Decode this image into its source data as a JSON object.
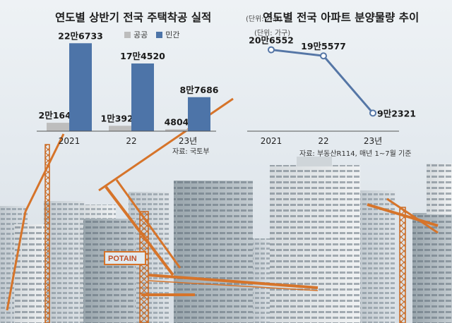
{
  "colors": {
    "public": "#bdbdbd",
    "private": "#4d74a8",
    "line": "#5576a6"
  },
  "chart_data": [
    {
      "type": "bar",
      "title": "연도별 상반기 전국 주택착공 실적",
      "unit": "(단위: 가구)",
      "categories": [
        "2021",
        "22",
        "23년"
      ],
      "series": [
        {
          "name": "공공",
          "values": [
            21647,
            13929,
            4804
          ],
          "labels": [
            "2만1647",
            "1만3929",
            "4804"
          ]
        },
        {
          "name": "민간",
          "values": [
            226733,
            174520,
            87686
          ],
          "labels": [
            "22만6733",
            "17만4520",
            "8만7686"
          ]
        }
      ],
      "ylim": [
        0,
        240000
      ],
      "legend": "top",
      "grid": false,
      "source": "자료: 국토부"
    },
    {
      "type": "line",
      "title": "연도별 전국 아파트 분양물량 추이",
      "unit": "(단위: 가구)",
      "categories": [
        "2021",
        "22",
        "23년"
      ],
      "values": [
        206552,
        195577,
        92321
      ],
      "labels": [
        "20만6552",
        "19만5577",
        "9만2321"
      ],
      "ylim": [
        80000,
        220000
      ],
      "grid": false,
      "source": "자료: 부동산R114, 매년 1~7월 기준"
    }
  ]
}
